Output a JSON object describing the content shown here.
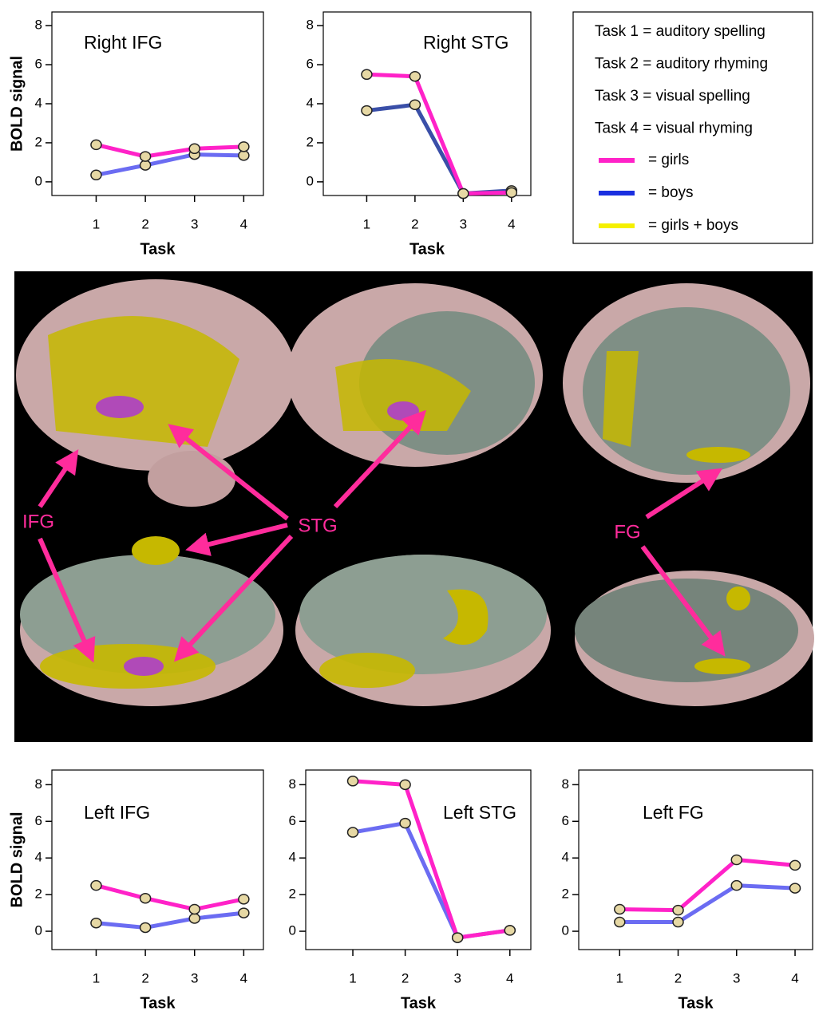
{
  "chart_data": [
    {
      "type": "line",
      "title": "Right IFG",
      "ylabel": "BOLD signal",
      "xlabel": "Task",
      "x": [
        1,
        2,
        3,
        4
      ],
      "xlim": [
        0.1,
        4.4
      ],
      "xticks": [
        1,
        2,
        3,
        4
      ],
      "ylim": [
        -0.7,
        8.7
      ],
      "yticks": [
        0,
        2,
        4,
        6,
        8
      ],
      "series": [
        {
          "color": "#6b6cf2",
          "values": [
            0.35,
            0.85,
            1.4,
            1.35
          ]
        },
        {
          "color": "#ff22c8",
          "values": [
            1.9,
            1.3,
            1.7,
            1.8
          ]
        }
      ]
    },
    {
      "type": "line",
      "title": "Right STG",
      "xlabel": "Task",
      "x": [
        1,
        2,
        3,
        4
      ],
      "xlim": [
        0.1,
        4.4
      ],
      "xticks": [
        1,
        2,
        3,
        4
      ],
      "ylim": [
        -0.7,
        8.7
      ],
      "yticks": [
        0,
        2,
        4,
        6,
        8
      ],
      "series": [
        {
          "color": "#3a4fa8",
          "values": [
            3.65,
            3.95,
            -0.6,
            -0.45
          ]
        },
        {
          "color": "#ff22c8",
          "values": [
            5.5,
            5.4,
            -0.6,
            -0.55
          ]
        }
      ]
    },
    {
      "type": "line",
      "title": "Left IFG",
      "ylabel": "BOLD signal",
      "xlabel": "Task",
      "x": [
        1,
        2,
        3,
        4
      ],
      "xlim": [
        0.1,
        4.4
      ],
      "xticks": [
        1,
        2,
        3,
        4
      ],
      "ylim": [
        -1.0,
        8.8
      ],
      "yticks": [
        0,
        2,
        4,
        6,
        8
      ],
      "series": [
        {
          "color": "#6b6cf2",
          "values": [
            0.45,
            0.2,
            0.7,
            1.0
          ]
        },
        {
          "color": "#ff22c8",
          "values": [
            2.5,
            1.8,
            1.2,
            1.75
          ]
        }
      ]
    },
    {
      "type": "line",
      "title": "Left STG",
      "xlabel": "Task",
      "x": [
        1,
        2,
        3,
        4
      ],
      "xlim": [
        0.1,
        4.4
      ],
      "xticks": [
        1,
        2,
        3,
        4
      ],
      "ylim": [
        -1.0,
        8.8
      ],
      "yticks": [
        0,
        2,
        4,
        6,
        8
      ],
      "series": [
        {
          "color": "#6b6cf2",
          "values": [
            5.4,
            5.9,
            -0.35,
            0.05
          ]
        },
        {
          "color": "#ff22c8",
          "values": [
            8.2,
            8.0,
            -0.35,
            0.05
          ]
        }
      ]
    },
    {
      "type": "line",
      "title": "Left FG",
      "xlabel": "Task",
      "x": [
        1,
        2,
        3,
        4
      ],
      "xlim": [
        0.3,
        4.3
      ],
      "xticks": [
        1,
        2,
        3,
        4
      ],
      "ylim": [
        -1.0,
        8.8
      ],
      "yticks": [
        0,
        2,
        4,
        6,
        8
      ],
      "series": [
        {
          "color": "#6b6cf2",
          "values": [
            0.5,
            0.5,
            2.5,
            2.35
          ]
        },
        {
          "color": "#ff22c8",
          "values": [
            1.2,
            1.15,
            3.9,
            3.6
          ]
        }
      ]
    }
  ],
  "legend": {
    "tasks": [
      "Task 1 = auditory spelling",
      "Task 2 = auditory rhyming",
      "Task 3 = visual spelling",
      "Task 4 = visual rhyming"
    ],
    "entries": [
      {
        "label": "= girls",
        "color": "#ff22c8"
      },
      {
        "label": "= boys",
        "color": "#1a2fe0"
      },
      {
        "label": "= girls + boys",
        "color": "#f5f000"
      }
    ]
  },
  "brain_labels": [
    "IFG",
    "STG",
    "FG"
  ]
}
